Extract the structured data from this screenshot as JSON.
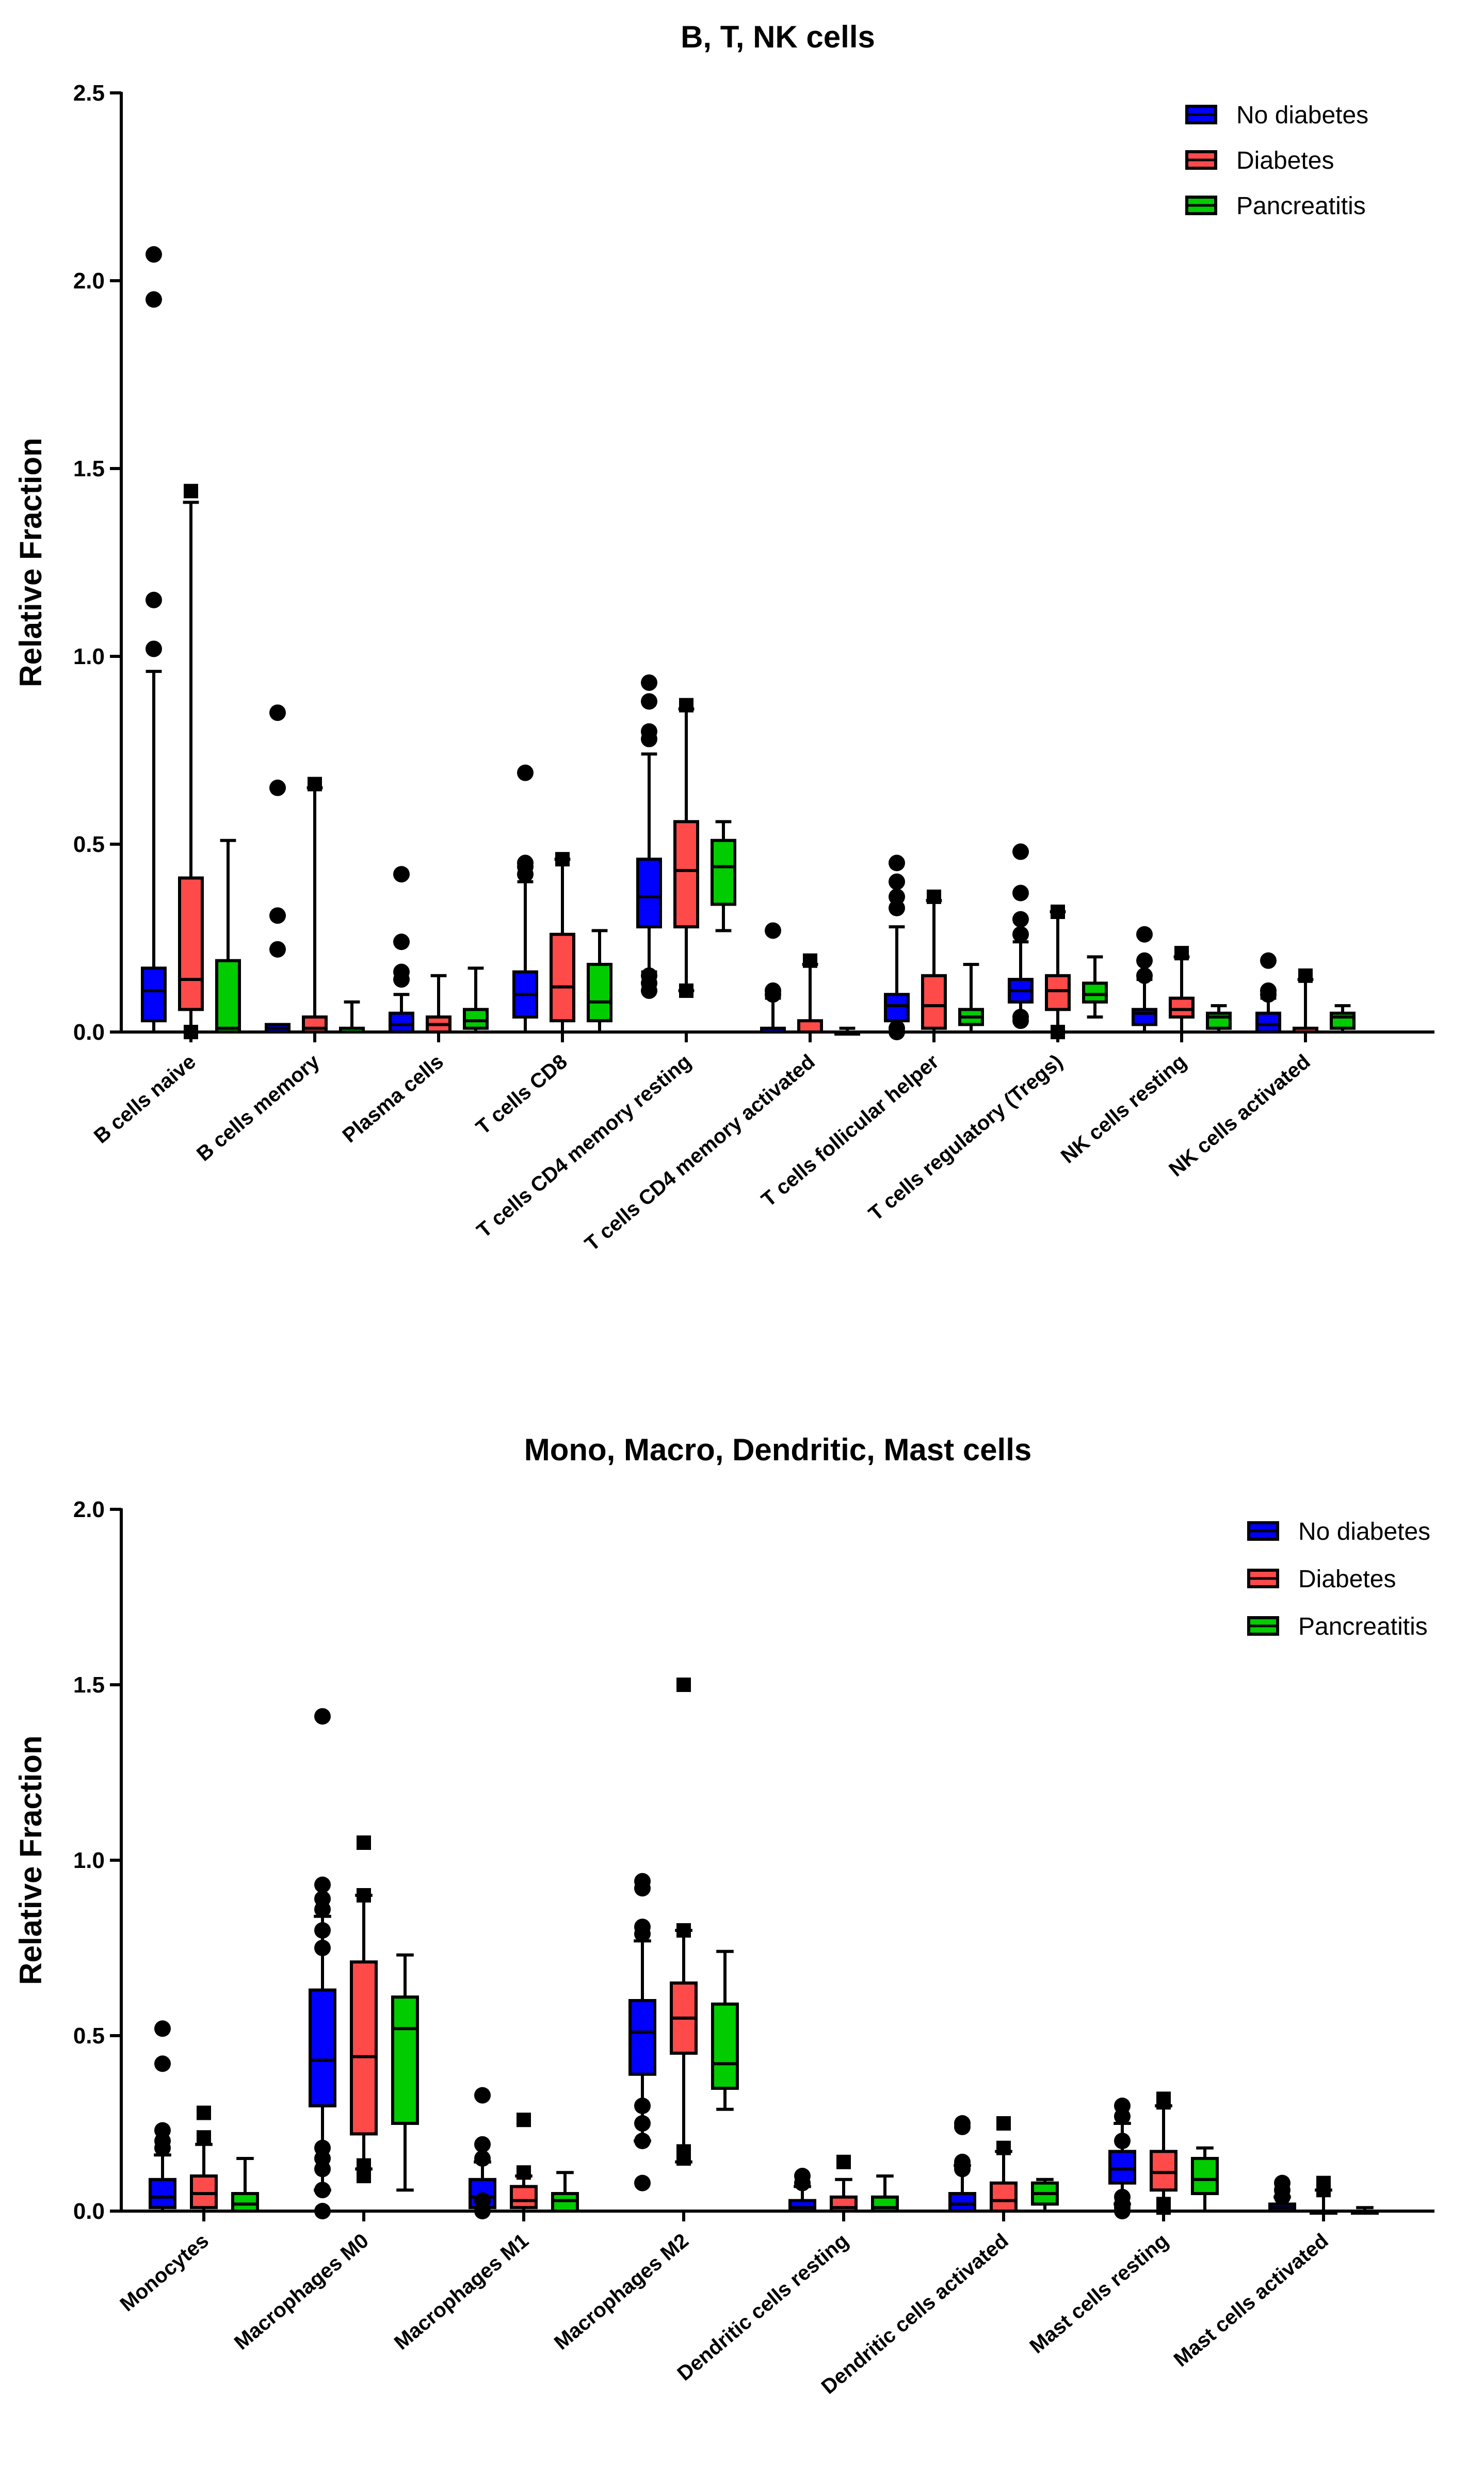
{
  "chart_data": [
    {
      "type": "box",
      "title": "B, T, NK cells",
      "ylabel": "Relative Fraction",
      "xlabel": "",
      "ylim": [
        0,
        2.5
      ],
      "yticks": [
        0.0,
        0.5,
        1.0,
        1.5,
        2.0,
        2.5
      ],
      "ytick_labels": [
        "0.0",
        "0.5",
        "1.0",
        "1.5",
        "2.0",
        "2.5"
      ],
      "grid": false,
      "legend_position": "top-right",
      "categories": [
        "B cells naive",
        "B cells memory",
        "Plasma cells",
        "T cells CD8",
        "T cells CD4 memory resting",
        "T cells CD4 memory activated",
        "T cells follicular helper",
        "T cells regulatory (Tregs)",
        "NK cells resting",
        "NK cells activated"
      ],
      "series": [
        {
          "name": "No diabetes",
          "color": "#0000ff",
          "marker": "circle",
          "boxes": [
            {
              "min": 0.0,
              "q1": 0.03,
              "median": 0.11,
              "q3": 0.17,
              "max": 0.96,
              "outliers": [
                2.07,
                1.95,
                1.15,
                1.02
              ]
            },
            {
              "min": 0.0,
              "q1": 0.0,
              "median": 0.01,
              "q3": 0.02,
              "max": 0.02,
              "outliers": [
                0.85,
                0.65,
                0.31,
                0.22
              ]
            },
            {
              "min": 0.0,
              "q1": 0.0,
              "median": 0.02,
              "q3": 0.05,
              "max": 0.1,
              "outliers": [
                0.42,
                0.24,
                0.16,
                0.14
              ]
            },
            {
              "min": 0.0,
              "q1": 0.04,
              "median": 0.1,
              "q3": 0.16,
              "max": 0.4,
              "outliers": [
                0.69,
                0.45,
                0.44,
                0.42
              ]
            },
            {
              "min": 0.16,
              "q1": 0.28,
              "median": 0.36,
              "q3": 0.46,
              "max": 0.74,
              "outliers": [
                0.93,
                0.88,
                0.8,
                0.78,
                0.15,
                0.13,
                0.11
              ]
            },
            {
              "min": 0.0,
              "q1": 0.0,
              "median": 0.0,
              "q3": 0.01,
              "max": 0.09,
              "outliers": [
                0.27,
                0.11,
                0.1
              ]
            },
            {
              "min": 0.0,
              "q1": 0.03,
              "median": 0.07,
              "q3": 0.1,
              "max": 0.28,
              "outliers": [
                0.45,
                0.4,
                0.36,
                0.33,
                0.01,
                0.0
              ]
            },
            {
              "min": 0.04,
              "q1": 0.08,
              "median": 0.11,
              "q3": 0.14,
              "max": 0.24,
              "outliers": [
                0.48,
                0.37,
                0.3,
                0.26,
                0.04,
                0.03
              ]
            },
            {
              "min": 0.0,
              "q1": 0.02,
              "median": 0.05,
              "q3": 0.06,
              "max": 0.14,
              "outliers": [
                0.26,
                0.19,
                0.15
              ]
            },
            {
              "min": 0.0,
              "q1": 0.0,
              "median": 0.02,
              "q3": 0.05,
              "max": 0.09,
              "outliers": [
                0.19,
                0.11,
                0.1
              ]
            }
          ]
        },
        {
          "name": "Diabetes",
          "color": "#ff4a4a",
          "marker": "square",
          "boxes": [
            {
              "min": 0.0,
              "q1": 0.06,
              "median": 0.14,
              "q3": 0.41,
              "max": 1.41,
              "outliers": [
                1.44,
                0.0
              ]
            },
            {
              "min": 0.0,
              "q1": 0.0,
              "median": 0.01,
              "q3": 0.04,
              "max": 0.65,
              "outliers": [
                0.66
              ]
            },
            {
              "min": 0.0,
              "q1": 0.0,
              "median": 0.02,
              "q3": 0.04,
              "max": 0.15,
              "outliers": []
            },
            {
              "min": 0.0,
              "q1": 0.03,
              "median": 0.12,
              "q3": 0.26,
              "max": 0.46,
              "outliers": [
                0.46
              ]
            },
            {
              "min": 0.11,
              "q1": 0.28,
              "median": 0.43,
              "q3": 0.56,
              "max": 0.86,
              "outliers": [
                0.87,
                0.11
              ]
            },
            {
              "min": 0.0,
              "q1": 0.0,
              "median": 0.0,
              "q3": 0.03,
              "max": 0.18,
              "outliers": [
                0.19
              ]
            },
            {
              "min": 0.0,
              "q1": 0.01,
              "median": 0.07,
              "q3": 0.15,
              "max": 0.35,
              "outliers": [
                0.36
              ]
            },
            {
              "min": 0.0,
              "q1": 0.06,
              "median": 0.11,
              "q3": 0.15,
              "max": 0.32,
              "outliers": [
                0.32,
                0.0
              ]
            },
            {
              "min": 0.0,
              "q1": 0.04,
              "median": 0.06,
              "q3": 0.09,
              "max": 0.2,
              "outliers": [
                0.21
              ]
            },
            {
              "min": 0.0,
              "q1": 0.0,
              "median": 0.0,
              "q3": 0.01,
              "max": 0.14,
              "outliers": [
                0.15
              ]
            }
          ]
        },
        {
          "name": "Pancreatitis",
          "color": "#00cc00",
          "marker": "triangle",
          "boxes": [
            {
              "min": 0.0,
              "q1": 0.0,
              "median": 0.01,
              "q3": 0.19,
              "max": 0.51,
              "outliers": []
            },
            {
              "min": 0.0,
              "q1": 0.0,
              "median": 0.0,
              "q3": 0.01,
              "max": 0.08,
              "outliers": []
            },
            {
              "min": 0.0,
              "q1": 0.01,
              "median": 0.03,
              "q3": 0.06,
              "max": 0.17,
              "outliers": []
            },
            {
              "min": 0.0,
              "q1": 0.03,
              "median": 0.08,
              "q3": 0.18,
              "max": 0.27,
              "outliers": []
            },
            {
              "min": 0.27,
              "q1": 0.34,
              "median": 0.44,
              "q3": 0.51,
              "max": 0.56,
              "outliers": []
            },
            {
              "min": 0.0,
              "q1": 0.0,
              "median": 0.0,
              "q3": 0.0,
              "max": 0.01,
              "outliers": []
            },
            {
              "min": 0.0,
              "q1": 0.02,
              "median": 0.04,
              "q3": 0.06,
              "max": 0.18,
              "outliers": []
            },
            {
              "min": 0.04,
              "q1": 0.08,
              "median": 0.1,
              "q3": 0.13,
              "max": 0.2,
              "outliers": []
            },
            {
              "min": 0.0,
              "q1": 0.01,
              "median": 0.04,
              "q3": 0.05,
              "max": 0.07,
              "outliers": []
            },
            {
              "min": 0.0,
              "q1": 0.01,
              "median": 0.04,
              "q3": 0.05,
              "max": 0.07,
              "outliers": []
            }
          ]
        }
      ]
    },
    {
      "type": "box",
      "title": "Mono, Macro, Dendritic, Mast cells",
      "ylabel": "Relative Fraction",
      "xlabel": "",
      "ylim": [
        0,
        2.0
      ],
      "yticks": [
        0.0,
        0.5,
        1.0,
        1.5,
        2.0
      ],
      "ytick_labels": [
        "0.0",
        "0.5",
        "1.0",
        "1.5",
        "2.0"
      ],
      "grid": false,
      "legend_position": "top-right",
      "categories": [
        "Monocytes",
        "Macrophages M0",
        "Macrophages M1",
        "Macrophages M2",
        "Dendritic cells resting",
        "Dendritic cells activated",
        "Mast cells resting",
        "Mast cells activated"
      ],
      "series": [
        {
          "name": "No diabetes",
          "color": "#0000ff",
          "marker": "circle",
          "boxes": [
            {
              "min": 0.0,
              "q1": 0.01,
              "median": 0.04,
              "q3": 0.09,
              "max": 0.16,
              "outliers": [
                0.52,
                0.42,
                0.23,
                0.2,
                0.18
              ]
            },
            {
              "min": 0.06,
              "q1": 0.3,
              "median": 0.43,
              "q3": 0.63,
              "max": 0.84,
              "outliers": [
                1.41,
                0.93,
                0.89,
                0.86,
                0.8,
                0.75,
                0.18,
                0.15,
                0.12,
                0.06,
                0.0
              ]
            },
            {
              "min": 0.0,
              "q1": 0.01,
              "median": 0.04,
              "q3": 0.09,
              "max": 0.14,
              "outliers": [
                0.33,
                0.19,
                0.15,
                0.03,
                0.0
              ]
            },
            {
              "min": 0.2,
              "q1": 0.39,
              "median": 0.51,
              "q3": 0.6,
              "max": 0.77,
              "outliers": [
                0.94,
                0.92,
                0.81,
                0.79,
                0.3,
                0.25,
                0.2,
                0.08
              ]
            },
            {
              "min": 0.0,
              "q1": 0.0,
              "median": 0.01,
              "q3": 0.03,
              "max": 0.07,
              "outliers": [
                0.1,
                0.08
              ]
            },
            {
              "min": 0.0,
              "q1": 0.0,
              "median": 0.02,
              "q3": 0.05,
              "max": 0.13,
              "outliers": [
                0.25,
                0.24,
                0.14,
                0.12
              ]
            },
            {
              "min": 0.02,
              "q1": 0.08,
              "median": 0.12,
              "q3": 0.17,
              "max": 0.25,
              "outliers": [
                0.3,
                0.27,
                0.2,
                0.04,
                0.02,
                0.01,
                0.0
              ]
            },
            {
              "min": 0.0,
              "q1": 0.0,
              "median": 0.01,
              "q3": 0.02,
              "max": 0.04,
              "outliers": [
                0.08,
                0.06,
                0.04
              ]
            }
          ]
        },
        {
          "name": "Diabetes",
          "color": "#ff4a4a",
          "marker": "square",
          "boxes": [
            {
              "min": 0.0,
              "q1": 0.01,
              "median": 0.05,
              "q3": 0.1,
              "max": 0.19,
              "outliers": [
                0.28,
                0.21
              ]
            },
            {
              "min": 0.12,
              "q1": 0.22,
              "median": 0.44,
              "q3": 0.71,
              "max": 0.9,
              "outliers": [
                1.05,
                0.9,
                0.13,
                0.1
              ]
            },
            {
              "min": 0.0,
              "q1": 0.01,
              "median": 0.03,
              "q3": 0.07,
              "max": 0.1,
              "outliers": [
                0.26,
                0.11
              ]
            },
            {
              "min": 0.14,
              "q1": 0.45,
              "median": 0.55,
              "q3": 0.65,
              "max": 0.8,
              "outliers": [
                1.5,
                0.8,
                0.17,
                0.15
              ]
            },
            {
              "min": 0.0,
              "q1": 0.0,
              "median": 0.01,
              "q3": 0.04,
              "max": 0.09,
              "outliers": [
                0.14
              ]
            },
            {
              "min": 0.0,
              "q1": 0.0,
              "median": 0.03,
              "q3": 0.08,
              "max": 0.17,
              "outliers": [
                0.25,
                0.18
              ]
            },
            {
              "min": 0.0,
              "q1": 0.06,
              "median": 0.11,
              "q3": 0.17,
              "max": 0.3,
              "outliers": [
                0.32,
                0.31,
                0.02,
                0.01
              ]
            },
            {
              "min": 0.0,
              "q1": 0.0,
              "median": 0.0,
              "q3": 0.0,
              "max": 0.06,
              "outliers": [
                0.08,
                0.06
              ]
            }
          ]
        },
        {
          "name": "Pancreatitis",
          "color": "#00cc00",
          "marker": "triangle",
          "boxes": [
            {
              "min": 0.0,
              "q1": 0.0,
              "median": 0.02,
              "q3": 0.05,
              "max": 0.15,
              "outliers": []
            },
            {
              "min": 0.06,
              "q1": 0.25,
              "median": 0.52,
              "q3": 0.61,
              "max": 0.73,
              "outliers": []
            },
            {
              "min": 0.0,
              "q1": 0.0,
              "median": 0.03,
              "q3": 0.05,
              "max": 0.11,
              "outliers": []
            },
            {
              "min": 0.29,
              "q1": 0.35,
              "median": 0.42,
              "q3": 0.59,
              "max": 0.74,
              "outliers": []
            },
            {
              "min": 0.0,
              "q1": 0.0,
              "median": 0.01,
              "q3": 0.04,
              "max": 0.1,
              "outliers": []
            },
            {
              "min": 0.0,
              "q1": 0.02,
              "median": 0.05,
              "q3": 0.08,
              "max": 0.09,
              "outliers": []
            },
            {
              "min": 0.0,
              "q1": 0.05,
              "median": 0.09,
              "q3": 0.15,
              "max": 0.18,
              "outliers": []
            },
            {
              "min": 0.0,
              "q1": 0.0,
              "median": 0.0,
              "q3": 0.0,
              "max": 0.01,
              "outliers": []
            }
          ]
        }
      ]
    }
  ]
}
